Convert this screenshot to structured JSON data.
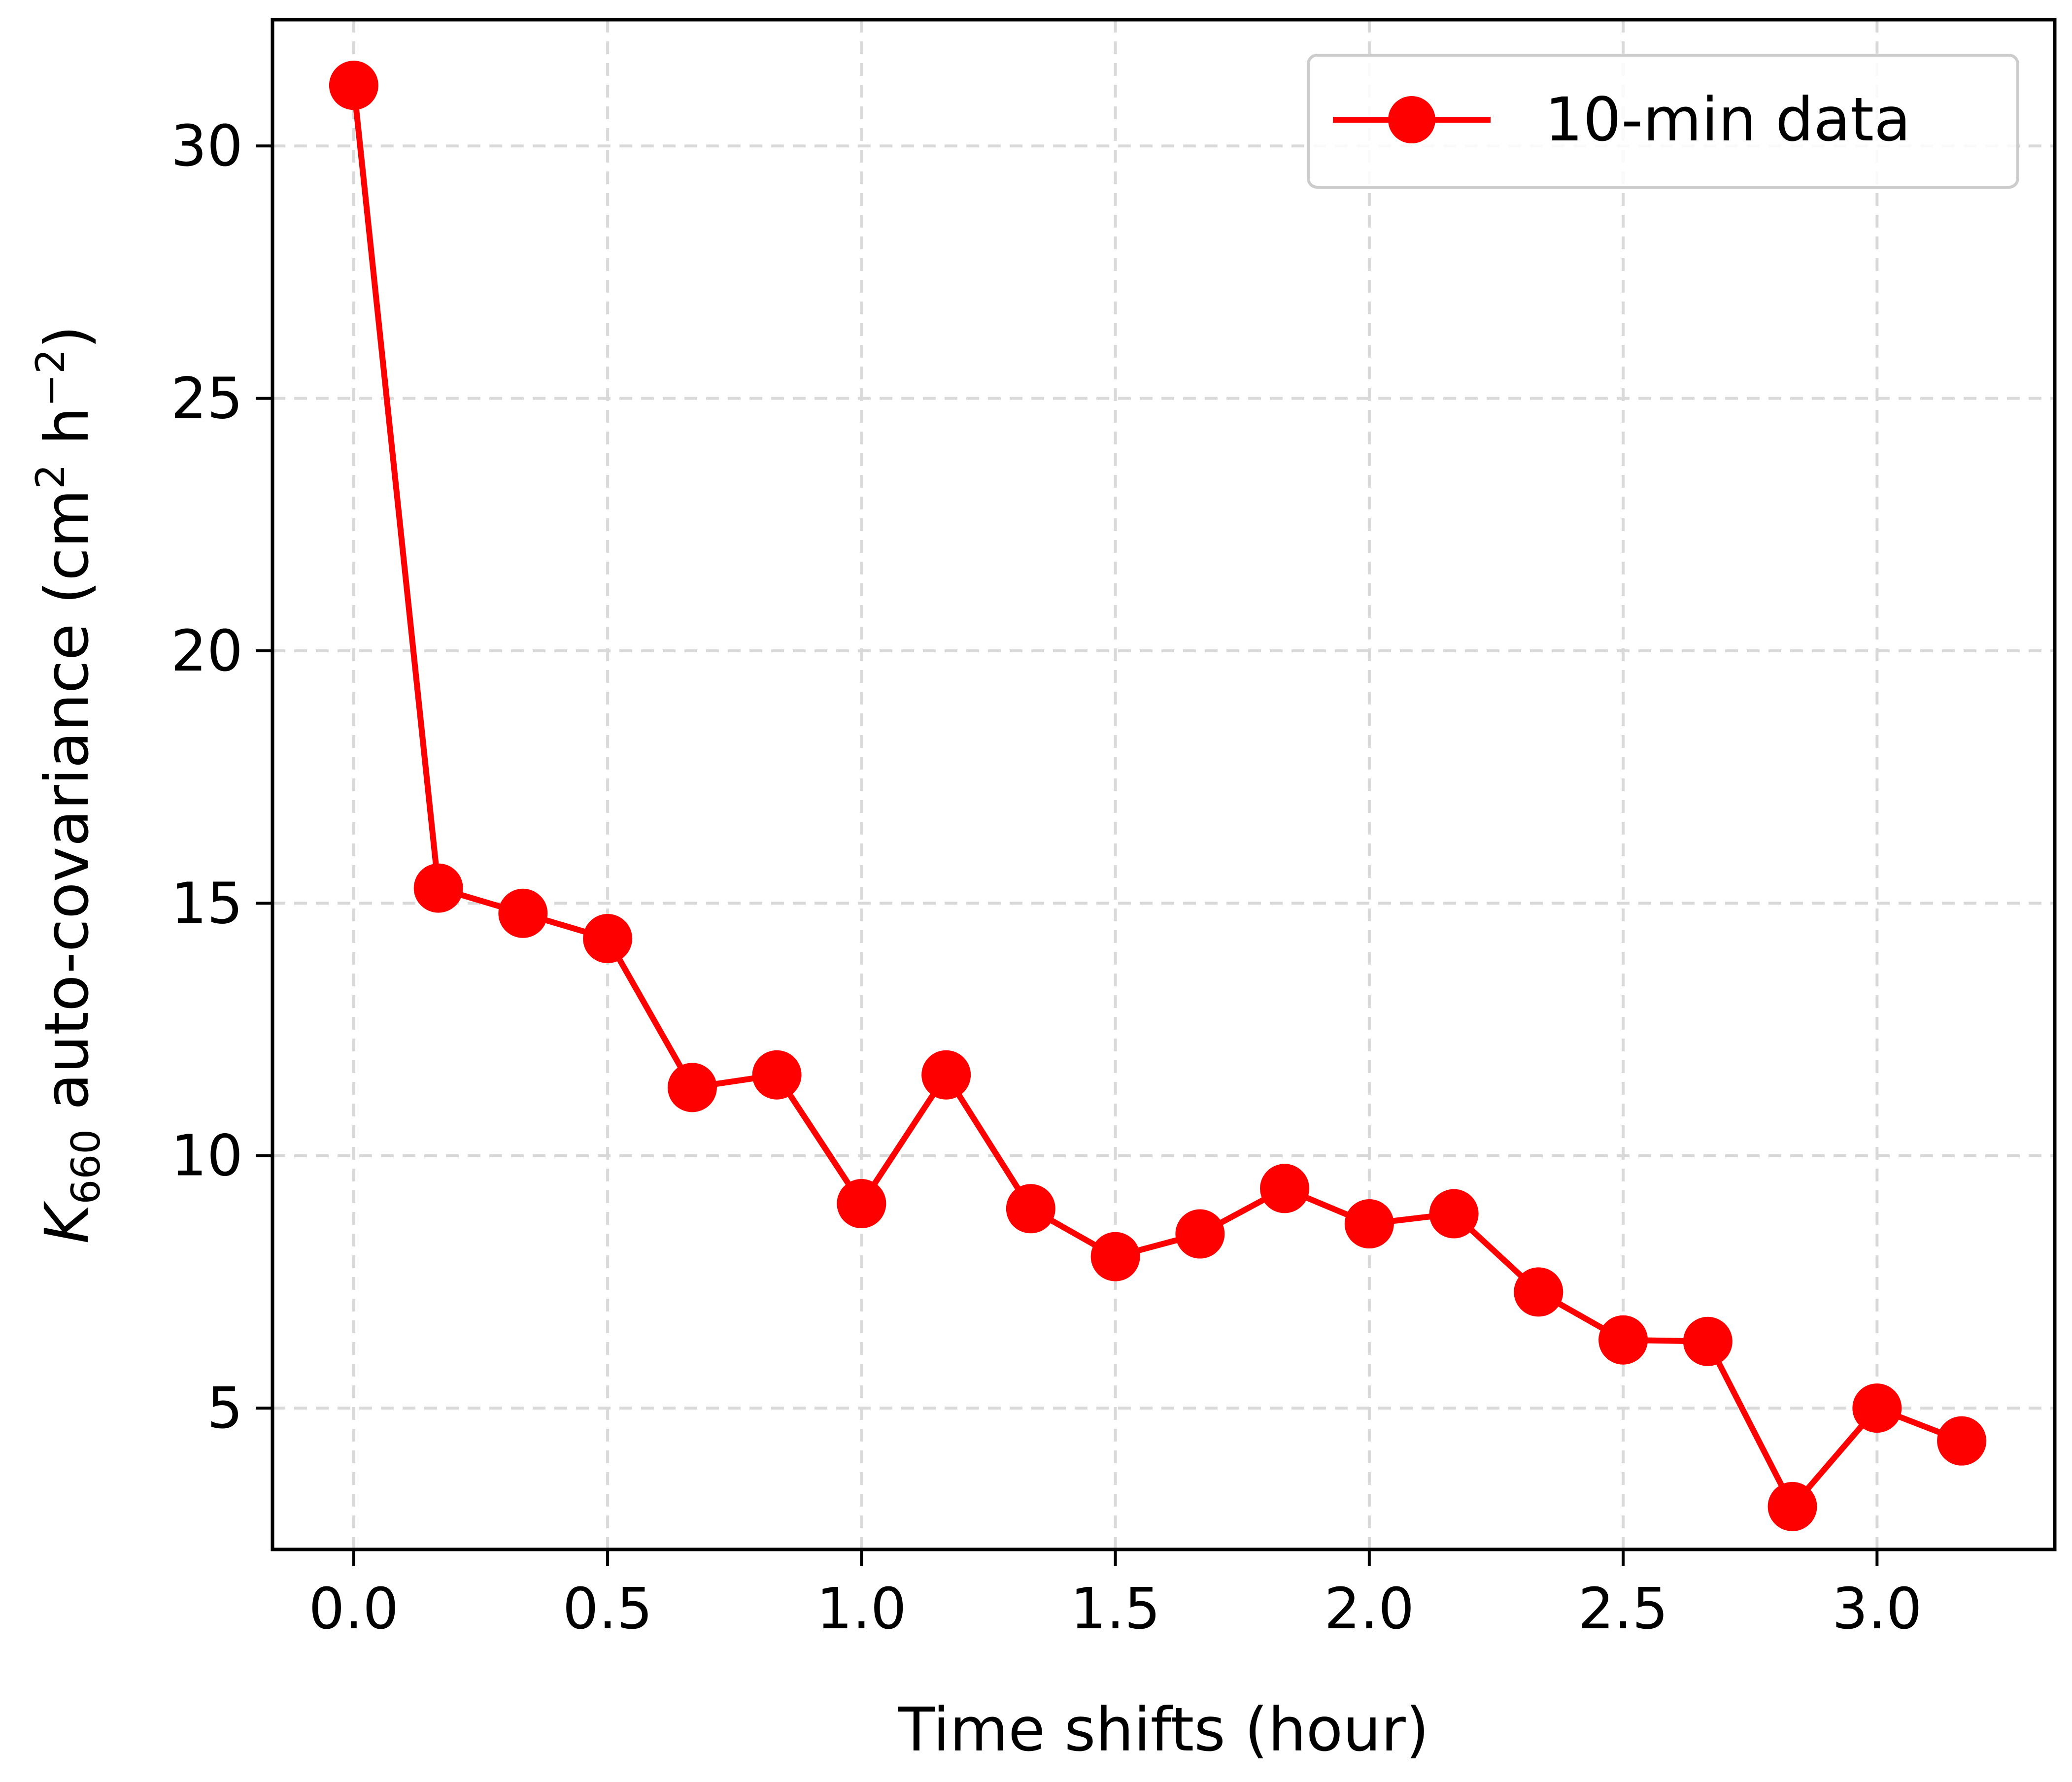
{
  "chart_data": {
    "type": "line",
    "title": "",
    "xlabel": "Time shifts (hour)",
    "ylabel": {
      "main": "K",
      "subscript": "660",
      "rest": " auto-covariance (cm",
      "sup1": "2",
      "mid": " h",
      "sup2": "−2",
      "end": ")"
    },
    "xlim": [
      -0.16,
      3.35
    ],
    "ylim": [
      2.2,
      32.5
    ],
    "xticks": [
      0.0,
      0.5,
      1.0,
      1.5,
      2.0,
      2.5,
      3.0
    ],
    "xtick_labels": [
      "0.0",
      "0.5",
      "1.0",
      "1.5",
      "2.0",
      "2.5",
      "3.0"
    ],
    "yticks": [
      5,
      10,
      15,
      20,
      25,
      30
    ],
    "ytick_labels": [
      "5",
      "10",
      "15",
      "20",
      "25",
      "30"
    ],
    "grid": true,
    "legend": {
      "position": "top-right"
    },
    "series": [
      {
        "name": "10-min data",
        "color": "#ff0000",
        "marker": "circle",
        "x": [
          0.0,
          0.1667,
          0.3333,
          0.5,
          0.6667,
          0.8333,
          1.0,
          1.1667,
          1.3333,
          1.5,
          1.6667,
          1.8333,
          2.0,
          2.1667,
          2.3333,
          2.5,
          2.6667,
          2.8333,
          3.0,
          3.1667
        ],
        "y": [
          31.2,
          15.3,
          14.8,
          14.3,
          11.35,
          11.6,
          9.05,
          11.6,
          8.95,
          8.0,
          8.45,
          9.35,
          8.65,
          8.85,
          7.3,
          6.35,
          6.32,
          3.05,
          5.0,
          4.35
        ]
      }
    ]
  }
}
